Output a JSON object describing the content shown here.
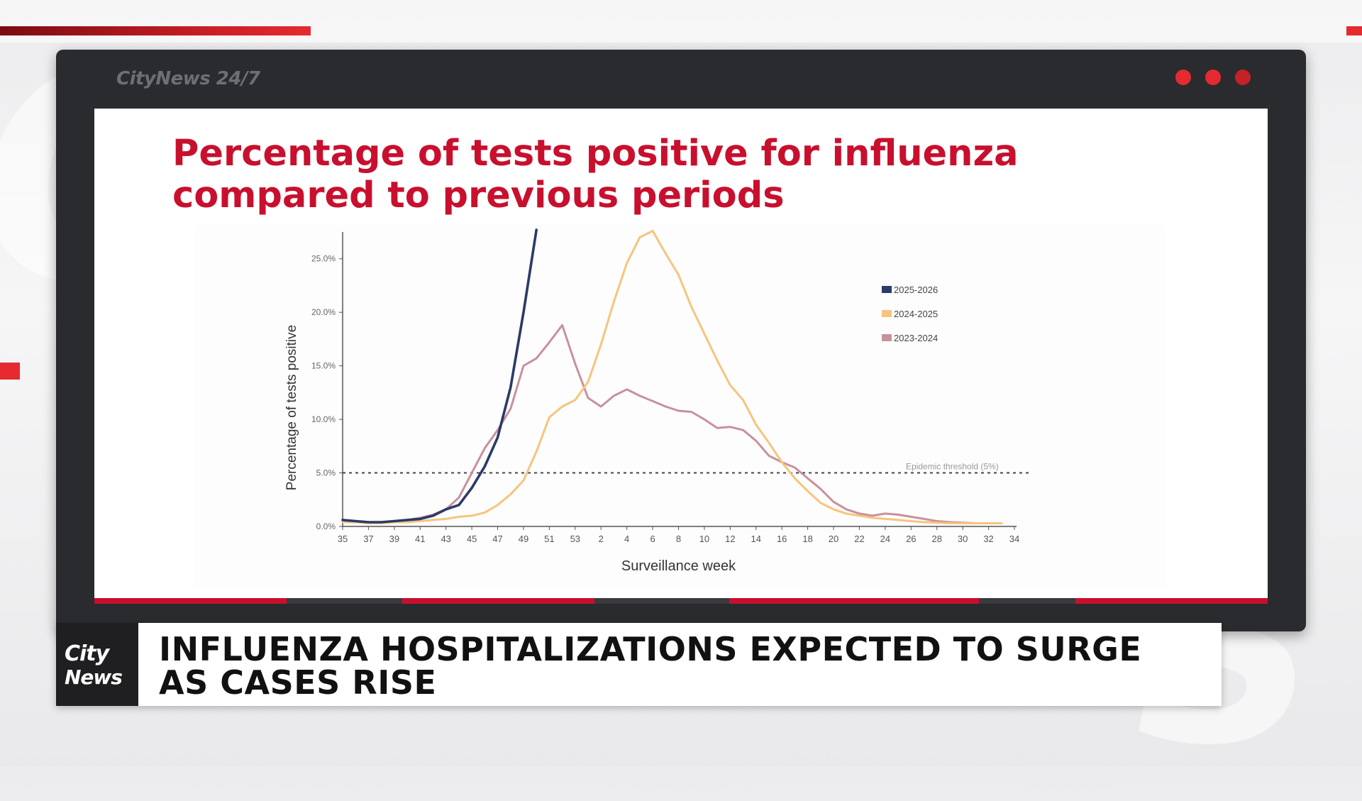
{
  "window": {
    "brand": "CityNews 24/7"
  },
  "slide": {
    "title": "Percentage of tests positive for influenza compared to previous periods"
  },
  "lower_third": {
    "logo_line1": "City",
    "logo_line2": "News",
    "headline": "INFLUENZA HOSPITALIZATIONS EXPECTED TO SURGE AS CASES RISE"
  },
  "colors": {
    "brand_red": "#c8102e",
    "series_2025": "#2b3a67",
    "series_2024": "#f7c47e",
    "series_2023": "#c8919c"
  },
  "chart_data": {
    "type": "line",
    "xlabel": "Surveillance week",
    "ylabel": "Percentage of tests positive",
    "ylim": [
      0,
      27.5
    ],
    "y_ticks": [
      "0.0%",
      "5.0%",
      "10.0%",
      "15.0%",
      "20.0%",
      "25.0%"
    ],
    "x_ticks": [
      "35",
      "37",
      "39",
      "41",
      "43",
      "45",
      "47",
      "49",
      "51",
      "53",
      "2",
      "4",
      "6",
      "8",
      "10",
      "12",
      "14",
      "16",
      "18",
      "20",
      "22",
      "24",
      "26",
      "28",
      "30",
      "32",
      "34"
    ],
    "threshold": {
      "value": 5,
      "label": "Epidemic threshold (5%)"
    },
    "legend_position": "right",
    "series": [
      {
        "name": "2025-2026",
        "color": "#2b3a67",
        "values": [
          0.6,
          0.5,
          0.4,
          0.4,
          0.5,
          0.6,
          0.7,
          1.0,
          1.6,
          2.0,
          3.6,
          5.6,
          8.3,
          13.0,
          20.0,
          27.7
        ]
      },
      {
        "name": "2024-2025",
        "color": "#f7c47e",
        "values": [
          0.4,
          0.4,
          0.3,
          0.3,
          0.4,
          0.4,
          0.5,
          0.6,
          0.7,
          0.9,
          1.0,
          1.3,
          2.0,
          3.0,
          4.3,
          7.0,
          10.2,
          11.2,
          11.8,
          13.5,
          17.0,
          21.0,
          24.6,
          27.0,
          27.6,
          25.5,
          23.5,
          20.5,
          18.0,
          15.5,
          13.2,
          11.8,
          9.5,
          7.8,
          6.0,
          4.5,
          3.3,
          2.2,
          1.6,
          1.2,
          1.0,
          0.8,
          0.7,
          0.6,
          0.5,
          0.4,
          0.35,
          0.3,
          0.3,
          0.3,
          0.3,
          0.3
        ]
      },
      {
        "name": "2023-2024",
        "color": "#c8919c",
        "values": [
          0.5,
          0.4,
          0.4,
          0.4,
          0.5,
          0.6,
          0.8,
          1.1,
          1.6,
          2.7,
          5.0,
          7.3,
          9.0,
          11.0,
          15.0,
          15.7,
          17.2,
          18.8,
          15.2,
          12.0,
          11.2,
          12.2,
          12.8,
          12.2,
          11.7,
          11.2,
          10.8,
          10.7,
          10.0,
          9.2,
          9.3,
          9.0,
          8.0,
          6.6,
          6.0,
          5.5,
          4.5,
          3.5,
          2.3,
          1.6,
          1.2,
          1.0,
          1.2,
          1.1,
          0.9,
          0.7,
          0.5,
          0.4,
          0.35,
          0.3,
          0.3,
          0.3
        ]
      }
    ]
  }
}
